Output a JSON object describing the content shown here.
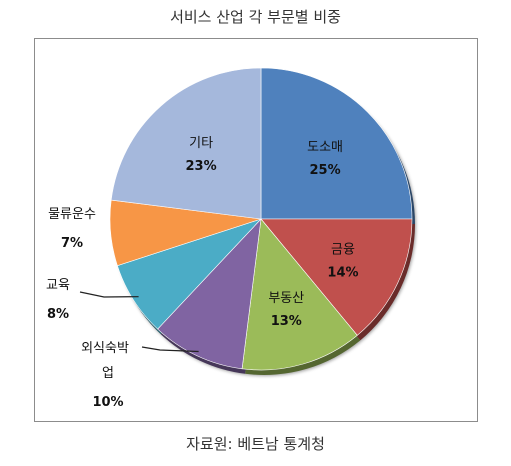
{
  "title": "서비스 산업 각 부문별 비중",
  "source": "자료원: 베트남 통계청",
  "chart_data": {
    "type": "pie",
    "title": "서비스 산업 각 부문별 비중",
    "slices": [
      {
        "label": "도소매",
        "value": 25,
        "value_label": "25%",
        "color": "#4f81bd"
      },
      {
        "label": "금융",
        "value": 14,
        "value_label": "14%",
        "color": "#c0504d"
      },
      {
        "label": "부동산",
        "value": 13,
        "value_label": "13%",
        "color": "#9bbb59"
      },
      {
        "label": "외식숙박업",
        "value": 10,
        "value_label": "10%",
        "color": "#8064a2"
      },
      {
        "label": "교육",
        "value": 8,
        "value_label": "8%",
        "color": "#4bacc6"
      },
      {
        "label": "물류운수",
        "value": 7,
        "value_label": "7%",
        "color": "#f79646"
      },
      {
        "label": "기타",
        "value": 23,
        "value_label": "23%",
        "color": "#a5b8dc"
      }
    ],
    "start_angle": "12 o'clock",
    "direction": "clockwise",
    "style": "3d-shadow"
  }
}
